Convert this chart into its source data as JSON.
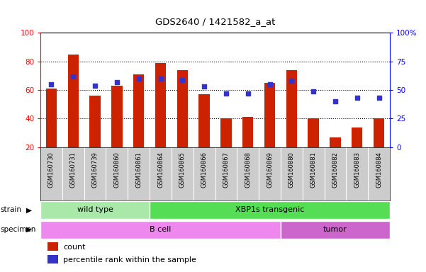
{
  "title": "GDS2640 / 1421582_a_at",
  "samples": [
    "GSM160730",
    "GSM160731",
    "GSM160739",
    "GSM160860",
    "GSM160861",
    "GSM160864",
    "GSM160865",
    "GSM160866",
    "GSM160867",
    "GSM160868",
    "GSM160869",
    "GSM160880",
    "GSM160881",
    "GSM160882",
    "GSM160883",
    "GSM160884"
  ],
  "counts": [
    61,
    85,
    56,
    63,
    71,
    79,
    74,
    57,
    40,
    41,
    65,
    74,
    40,
    27,
    34,
    40
  ],
  "percentiles": [
    55,
    62,
    54,
    57,
    60,
    60,
    59,
    53,
    47,
    47,
    55,
    58,
    49,
    40,
    43,
    43
  ],
  "ymin": 20,
  "ymax": 100,
  "yticks": [
    20,
    40,
    60,
    80,
    100
  ],
  "y2ticks": [
    0,
    25,
    50,
    75,
    100
  ],
  "y2labels": [
    "0",
    "25",
    "50",
    "75",
    "100%"
  ],
  "bar_color": "#cc2200",
  "dot_color": "#3333cc",
  "strain_groups": [
    {
      "label": "wild type",
      "start": 0,
      "end": 4,
      "color": "#aae8aa"
    },
    {
      "label": "XBP1s transgenic",
      "start": 5,
      "end": 15,
      "color": "#55dd55"
    }
  ],
  "specimen_groups": [
    {
      "label": "B cell",
      "start": 0,
      "end": 10,
      "color": "#ee88ee"
    },
    {
      "label": "tumor",
      "start": 11,
      "end": 15,
      "color": "#cc66cc"
    }
  ],
  "legend_count_label": "count",
  "legend_pct_label": "percentile rank within the sample",
  "xtick_bg_color": "#cccccc",
  "strain_border_color": "#ffffff",
  "specimen_border_color": "#ffffff"
}
